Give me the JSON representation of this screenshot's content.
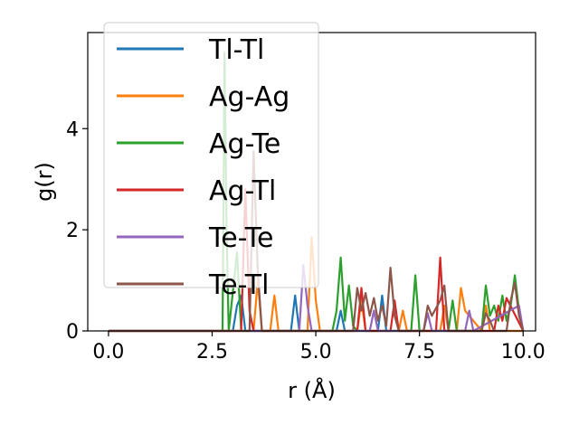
{
  "chart_data": {
    "type": "line",
    "xlabel": "r (Å)",
    "ylabel": "g(r)",
    "xlim": [
      -0.5,
      10.3
    ],
    "ylim": [
      0,
      5.9
    ],
    "xticks": [
      0.0,
      2.5,
      5.0,
      7.5,
      10.0
    ],
    "xtick_labels": [
      "0.0",
      "2.5",
      "5.0",
      "7.5",
      "10.0"
    ],
    "yticks": [
      0,
      2,
      4
    ],
    "ytick_labels": [
      "0",
      "2",
      "4"
    ],
    "grid": false,
    "legend_position": "top-left",
    "series": [
      {
        "name": "Tl-Tl",
        "color": "#1f77b4",
        "x": [
          0,
          3.0,
          3.1,
          3.2,
          3.3,
          4.4,
          4.5,
          4.6,
          5.5,
          5.6,
          5.7,
          6.5,
          6.6,
          6.7,
          10.0
        ],
        "y": [
          0,
          0,
          0.5,
          0.7,
          0,
          0,
          0.7,
          0,
          0,
          0.4,
          0,
          0,
          0.7,
          0,
          0
        ]
      },
      {
        "name": "Ag-Ag",
        "color": "#ff7f0e",
        "x": [
          0,
          3.5,
          3.6,
          3.7,
          3.9,
          4.0,
          4.1,
          4.8,
          4.9,
          5.0,
          5.1,
          6.0,
          6.1,
          6.2,
          7.0,
          7.1,
          7.2,
          8.0,
          8.1,
          8.2,
          8.4,
          8.5,
          8.6,
          9.0,
          9.1,
          9.2,
          10.0
        ],
        "y": [
          0,
          0,
          1.0,
          0,
          0,
          0.7,
          0,
          0,
          1.85,
          0.6,
          0,
          0,
          0.6,
          0,
          0,
          0.4,
          0,
          0,
          0.5,
          0,
          0,
          0.85,
          0.4,
          0,
          0.5,
          0,
          0
        ]
      },
      {
        "name": "Ag-Te",
        "color": "#2ca02c",
        "x": [
          0,
          2.75,
          2.8,
          2.85,
          2.9,
          3.1,
          3.2,
          5.4,
          5.5,
          5.6,
          5.7,
          5.8,
          5.9,
          6.0,
          7.3,
          7.4,
          7.5,
          8.2,
          8.3,
          8.4,
          9.0,
          9.1,
          9.2,
          9.3,
          9.4,
          9.5,
          9.6,
          9.7,
          9.8,
          9.9,
          10.0
        ],
        "y": [
          0,
          0,
          5.5,
          2.0,
          0,
          1.55,
          0,
          0,
          0.4,
          1.45,
          0.2,
          0.9,
          0.1,
          0,
          0,
          1.1,
          0,
          0,
          0.6,
          0,
          0,
          0.9,
          0.3,
          0.5,
          0.2,
          0.7,
          0.2,
          0.5,
          1.1,
          0.4,
          0
        ]
      },
      {
        "name": "Ag-Tl",
        "color": "#d62728",
        "x": [
          0,
          3.2,
          3.3,
          3.4,
          3.5,
          6.0,
          6.1,
          6.2,
          6.8,
          6.9,
          7.0,
          7.9,
          8.0,
          8.1,
          9.3,
          9.4,
          9.5,
          9.6,
          10.0
        ],
        "y": [
          0,
          0,
          2.8,
          0.4,
          0,
          0,
          0.85,
          0,
          0,
          0.6,
          0,
          0,
          1.45,
          0,
          0,
          0.5,
          0.2,
          0.65,
          0
        ]
      },
      {
        "name": "Te-Te",
        "color": "#9467bd",
        "x": [
          0,
          4.6,
          4.7,
          4.8,
          4.9,
          6.3,
          6.4,
          6.5,
          7.6,
          7.7,
          7.8,
          8.6,
          8.7,
          8.8,
          9.9,
          10.0
        ],
        "y": [
          0,
          0,
          1.3,
          0.5,
          0,
          0,
          0.4,
          0,
          0,
          0.35,
          0,
          0,
          0.4,
          0,
          0.5,
          0
        ]
      },
      {
        "name": "Te-Tl",
        "color": "#8c564b",
        "x": [
          0,
          3.4,
          3.5,
          3.6,
          3.7,
          5.9,
          6.0,
          6.1,
          6.2,
          6.3,
          6.4,
          6.5,
          6.6,
          6.7,
          6.8,
          6.9,
          7.0,
          7.6,
          7.7,
          7.8,
          8.0,
          8.1,
          8.2,
          9.0,
          9.1,
          9.2,
          9.3,
          9.6,
          9.7,
          9.8,
          9.9,
          10.0
        ],
        "y": [
          0,
          0,
          3.55,
          1.2,
          0,
          0,
          0.85,
          0.4,
          0.75,
          0.3,
          0.65,
          0.2,
          0.5,
          0.1,
          1.25,
          0.3,
          0,
          0,
          0.5,
          0.3,
          0.6,
          0.9,
          0,
          0,
          0.35,
          0.2,
          0,
          0,
          0.6,
          0.95,
          0.3,
          0
        ]
      }
    ]
  }
}
